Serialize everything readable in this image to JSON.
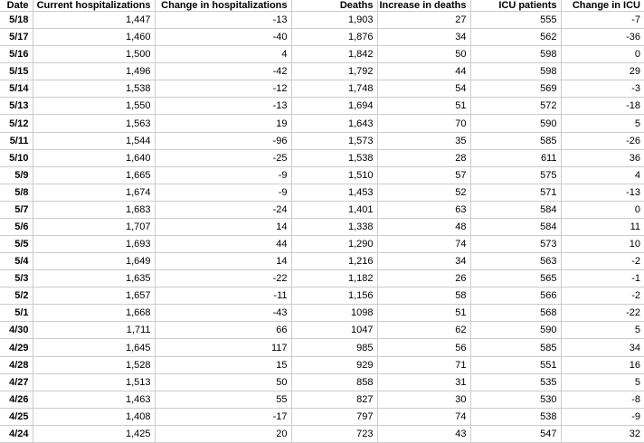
{
  "colors": {
    "gridline": "#cccccc",
    "text": "#000000",
    "background": "#ffffff"
  },
  "table": {
    "columns": [
      {
        "key": "date",
        "label": "Date"
      },
      {
        "key": "current_hospitalizations",
        "label": "Current hospitalizations"
      },
      {
        "key": "change_in_hospitalizations",
        "label": "Change in hospitalizations"
      },
      {
        "key": "deaths",
        "label": "Deaths"
      },
      {
        "key": "increase_in_deaths",
        "label": "Increase in deaths"
      },
      {
        "key": "icu_patients",
        "label": "ICU patients"
      },
      {
        "key": "change_in_icu",
        "label": "Change in ICU"
      }
    ],
    "rows": [
      [
        "5/18",
        "1,447",
        "-13",
        "1,903",
        "27",
        "555",
        "-7"
      ],
      [
        "5/17",
        "1,460",
        "-40",
        "1,876",
        "34",
        "562",
        "-36"
      ],
      [
        "5/16",
        "1,500",
        "4",
        "1,842",
        "50",
        "598",
        "0"
      ],
      [
        "5/15",
        "1,496",
        "-42",
        "1,792",
        "44",
        "598",
        "29"
      ],
      [
        "5/14",
        "1,538",
        "-12",
        "1,748",
        "54",
        "569",
        "-3"
      ],
      [
        "5/13",
        "1,550",
        "-13",
        "1,694",
        "51",
        "572",
        "-18"
      ],
      [
        "5/12",
        "1,563",
        "19",
        "1,643",
        "70",
        "590",
        "5"
      ],
      [
        "5/11",
        "1,544",
        "-96",
        "1,573",
        "35",
        "585",
        "-26"
      ],
      [
        "5/10",
        "1,640",
        "-25",
        "1,538",
        "28",
        "611",
        "36"
      ],
      [
        "5/9",
        "1,665",
        "-9",
        "1,510",
        "57",
        "575",
        "4"
      ],
      [
        "5/8",
        "1,674",
        "-9",
        "1,453",
        "52",
        "571",
        "-13"
      ],
      [
        "5/7",
        "1,683",
        "-24",
        "1,401",
        "63",
        "584",
        "0"
      ],
      [
        "5/6",
        "1,707",
        "14",
        "1,338",
        "48",
        "584",
        "11"
      ],
      [
        "5/5",
        "1,693",
        "44",
        "1,290",
        "74",
        "573",
        "10"
      ],
      [
        "5/4",
        "1,649",
        "14",
        "1,216",
        "34",
        "563",
        "-2"
      ],
      [
        "5/3",
        "1,635",
        "-22",
        "1,182",
        "26",
        "565",
        "-1"
      ],
      [
        "5/2",
        "1,657",
        "-11",
        "1,156",
        "58",
        "566",
        "-2"
      ],
      [
        "5/1",
        "1,668",
        "-43",
        "1098",
        "51",
        "568",
        "-22"
      ],
      [
        "4/30",
        "1,711",
        "66",
        "1047",
        "62",
        "590",
        "5"
      ],
      [
        "4/29",
        "1,645",
        "117",
        "985",
        "56",
        "585",
        "34"
      ],
      [
        "4/28",
        "1,528",
        "15",
        "929",
        "71",
        "551",
        "16"
      ],
      [
        "4/27",
        "1,513",
        "50",
        "858",
        "31",
        "535",
        "5"
      ],
      [
        "4/26",
        "1,463",
        "55",
        "827",
        "30",
        "530",
        "-8"
      ],
      [
        "4/25",
        "1,408",
        "-17",
        "797",
        "74",
        "538",
        "-9"
      ],
      [
        "4/24",
        "1,425",
        "20",
        "723",
        "43",
        "547",
        "32"
      ]
    ]
  }
}
